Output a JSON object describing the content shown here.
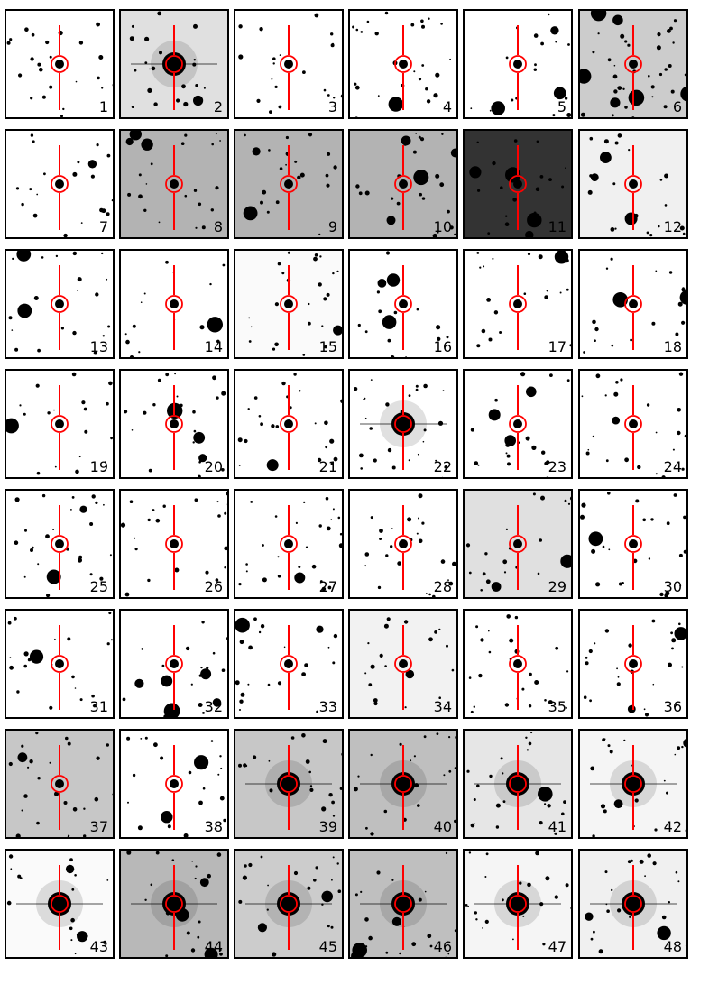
{
  "figure": {
    "panels": [
      {
        "label": "1",
        "bg": 0
      },
      {
        "label": "2",
        "bg": 0.12,
        "bright": true
      },
      {
        "label": "3",
        "bg": 0
      },
      {
        "label": "4",
        "bg": 0
      },
      {
        "label": "5",
        "bg": 0
      },
      {
        "label": "6",
        "bg": 0.2,
        "crowded": true
      },
      {
        "label": "7",
        "bg": 0
      },
      {
        "label": "8",
        "bg": 0.3
      },
      {
        "label": "9",
        "bg": 0.3
      },
      {
        "label": "10",
        "bg": 0.3
      },
      {
        "label": "11",
        "bg": 0.8
      },
      {
        "label": "12",
        "bg": 0.06
      },
      {
        "label": "13",
        "bg": 0
      },
      {
        "label": "14",
        "bg": 0
      },
      {
        "label": "15",
        "bg": 0.02
      },
      {
        "label": "16",
        "bg": 0
      },
      {
        "label": "17",
        "bg": 0
      },
      {
        "label": "18",
        "bg": 0
      },
      {
        "label": "19",
        "bg": 0
      },
      {
        "label": "20",
        "bg": 0
      },
      {
        "label": "21",
        "bg": 0
      },
      {
        "label": "22",
        "bg": 0,
        "bright": true
      },
      {
        "label": "23",
        "bg": 0
      },
      {
        "label": "24",
        "bg": 0
      },
      {
        "label": "25",
        "bg": 0
      },
      {
        "label": "26",
        "bg": 0
      },
      {
        "label": "27",
        "bg": 0
      },
      {
        "label": "28",
        "bg": 0
      },
      {
        "label": "29",
        "bg": 0.12
      },
      {
        "label": "30",
        "bg": 0
      },
      {
        "label": "31",
        "bg": 0
      },
      {
        "label": "32",
        "bg": 0
      },
      {
        "label": "33",
        "bg": 0
      },
      {
        "label": "34",
        "bg": 0.05
      },
      {
        "label": "35",
        "bg": 0
      },
      {
        "label": "36",
        "bg": 0
      },
      {
        "label": "37",
        "bg": 0.22
      },
      {
        "label": "38",
        "bg": 0
      },
      {
        "label": "39",
        "bg": 0.22,
        "bright": true
      },
      {
        "label": "40",
        "bg": 0.25,
        "bright": true
      },
      {
        "label": "41",
        "bg": 0.1,
        "bright": true
      },
      {
        "label": "42",
        "bg": 0.04,
        "bright": true
      },
      {
        "label": "43",
        "bg": 0.02,
        "bright": true
      },
      {
        "label": "44",
        "bg": 0.28,
        "bright": true
      },
      {
        "label": "45",
        "bg": 0.2,
        "bright": true
      },
      {
        "label": "46",
        "bg": 0.25,
        "bright": true
      },
      {
        "label": "47",
        "bg": 0.04,
        "bright": true
      },
      {
        "label": "48",
        "bg": 0.06,
        "bright": true
      }
    ],
    "colors": {
      "marker": "#ff0000",
      "frame": "#000000"
    }
  }
}
